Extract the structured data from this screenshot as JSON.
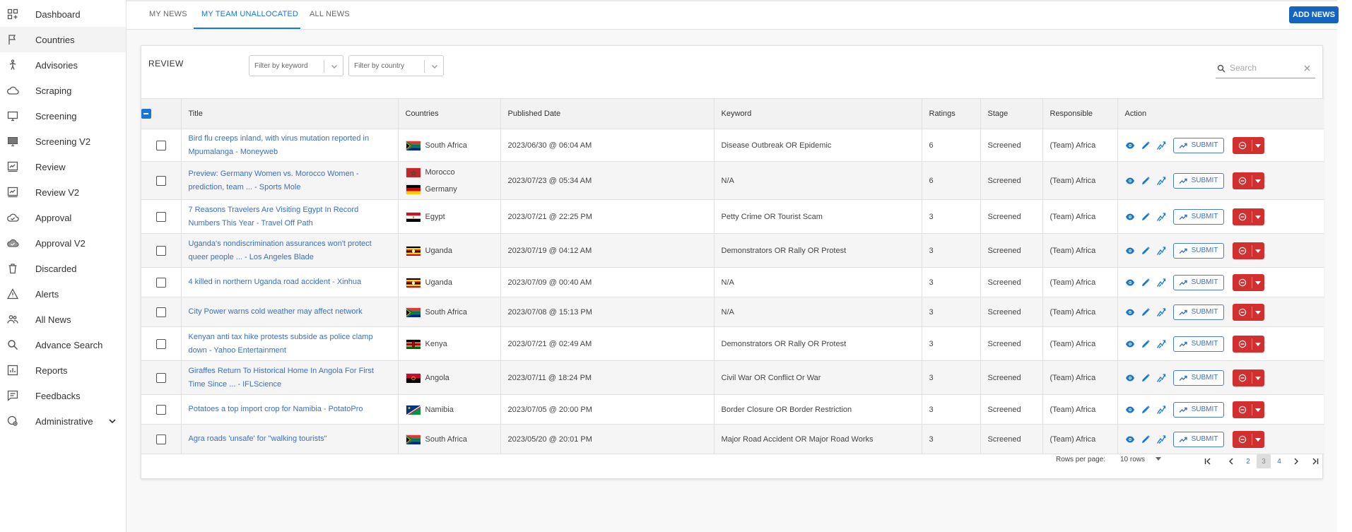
{
  "sidebar": {
    "items": [
      {
        "label": "Dashboard",
        "icon": "dashboard-icon"
      },
      {
        "label": "Countries",
        "icon": "flag-icon"
      },
      {
        "label": "Advisories",
        "icon": "person-walking-icon"
      },
      {
        "label": "Scraping",
        "icon": "cloud-icon"
      },
      {
        "label": "Screening",
        "icon": "monitor-icon"
      },
      {
        "label": "Screening V2",
        "icon": "monitor-filled-icon"
      },
      {
        "label": "Review",
        "icon": "review-icon"
      },
      {
        "label": "Review V2",
        "icon": "review-icon"
      },
      {
        "label": "Approval",
        "icon": "cloud-check-icon"
      },
      {
        "label": "Approval V2",
        "icon": "cloud-check-icon"
      },
      {
        "label": "Discarded",
        "icon": "trash-icon"
      },
      {
        "label": "Alerts",
        "icon": "warning-icon"
      },
      {
        "label": "All News",
        "icon": "people-icon"
      },
      {
        "label": "Advance Search",
        "icon": "search-icon"
      },
      {
        "label": "Reports",
        "icon": "report-icon"
      },
      {
        "label": "Feedbacks",
        "icon": "feedback-icon"
      },
      {
        "label": "Administrative",
        "icon": "admin-icon"
      }
    ]
  },
  "tabs": {
    "my_news": "MY NEWS",
    "team_unallocated": "MY TEAM UNALLOCATED",
    "all_news": "ALL NEWS"
  },
  "add_news_label": "ADD NEWS",
  "review": {
    "label": "REVIEW",
    "filter_keyword_placeholder": "Filter by keyword",
    "filter_country_placeholder": "Filter by country",
    "search_placeholder": "Search"
  },
  "table": {
    "headers": [
      "Title",
      "Countries",
      "Published Date",
      "Keyword",
      "Ratings",
      "Stage",
      "Responsible",
      "Action"
    ],
    "submit_label": "SUBMIT",
    "rows": [
      {
        "title": "Bird flu creeps inland, with virus mutation reported in Mpumalanga - Moneyweb",
        "countries": [
          {
            "name": "South Africa",
            "flag": "za"
          }
        ],
        "date": "2023/06/30 @ 06:04 AM",
        "keyword": "Disease Outbreak OR Epidemic",
        "rating": "6",
        "stage": "Screened",
        "responsible": "(Team) Africa"
      },
      {
        "title": "Preview: Germany Women vs. Morocco Women - prediction, team ... - Sports Mole",
        "countries": [
          {
            "name": "Morocco",
            "flag": "ma"
          },
          {
            "name": "Germany",
            "flag": "de"
          }
        ],
        "date": "2023/07/23 @ 05:34 AM",
        "keyword": "N/A",
        "rating": "6",
        "stage": "Screened",
        "responsible": "(Team) Africa"
      },
      {
        "title": "7 Reasons Travelers Are Visiting Egypt In Record Numbers This Year - Travel Off Path",
        "countries": [
          {
            "name": "Egypt",
            "flag": "eg"
          }
        ],
        "date": "2023/07/21 @ 22:25 PM",
        "keyword": "Petty Crime OR Tourist Scam",
        "rating": "3",
        "stage": "Screened",
        "responsible": "(Team) Africa"
      },
      {
        "title": "Uganda's nondiscrimination assurances won't protect queer people ... - Los Angeles Blade",
        "countries": [
          {
            "name": "Uganda",
            "flag": "ug"
          }
        ],
        "date": "2023/07/19 @ 04:12 AM",
        "keyword": "Demonstrators OR Rally OR Protest",
        "rating": "3",
        "stage": "Screened",
        "responsible": "(Team) Africa"
      },
      {
        "title": "4 killed in northern Uganda road accident - Xinhua",
        "countries": [
          {
            "name": "Uganda",
            "flag": "ug"
          }
        ],
        "date": "2023/07/09 @ 00:40 AM",
        "keyword": "N/A",
        "rating": "3",
        "stage": "Screened",
        "responsible": "(Team) Africa"
      },
      {
        "title": "City Power warns cold weather may affect network",
        "countries": [
          {
            "name": "South Africa",
            "flag": "za"
          }
        ],
        "date": "2023/07/08 @ 15:13 PM",
        "keyword": "N/A",
        "rating": "3",
        "stage": "Screened",
        "responsible": "(Team) Africa"
      },
      {
        "title": "Kenyan anti tax hike protests subside as police clamp down - Yahoo Entertainment",
        "countries": [
          {
            "name": "Kenya",
            "flag": "ke"
          }
        ],
        "date": "2023/07/21 @ 02:49 AM",
        "keyword": "Demonstrators OR Rally OR Protest",
        "rating": "3",
        "stage": "Screened",
        "responsible": "(Team) Africa"
      },
      {
        "title": "Giraffes Return To Historical Home In Angola For First Time Since ... - IFLScience",
        "countries": [
          {
            "name": "Angola",
            "flag": "ao"
          }
        ],
        "date": "2023/07/11 @ 18:24 PM",
        "keyword": "Civil War OR Conflict Or War",
        "rating": "3",
        "stage": "Screened",
        "responsible": "(Team) Africa"
      },
      {
        "title": "Potatoes a top import crop for Namibia - PotatoPro",
        "countries": [
          {
            "name": "Namibia",
            "flag": "na"
          }
        ],
        "date": "2023/07/05 @ 20:00 PM",
        "keyword": "Border Closure OR Border Restriction",
        "rating": "3",
        "stage": "Screened",
        "responsible": "(Team) Africa"
      },
      {
        "title": "Agra roads 'unsafe' for \"walking tourists\"",
        "countries": [
          {
            "name": "South Africa",
            "flag": "za"
          }
        ],
        "date": "2023/05/20 @ 20:01 PM",
        "keyword": "Major Road Accident OR Major Road Works",
        "rating": "3",
        "stage": "Screened",
        "responsible": "(Team) Africa"
      }
    ]
  },
  "pagination": {
    "rows_per_page_label": "Rows per page:",
    "rows_value": "10 rows",
    "pages": [
      "2",
      "3",
      "4"
    ],
    "current_page": "3"
  },
  "colors": {
    "primary": "#1976d2",
    "link": "#3b6fc2",
    "danger": "#d32f2f"
  }
}
